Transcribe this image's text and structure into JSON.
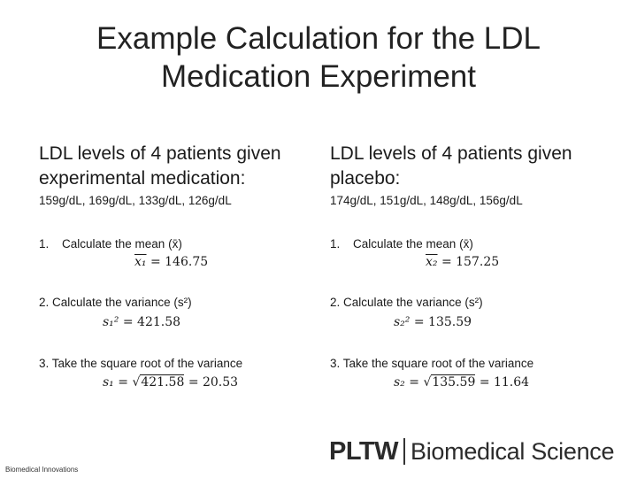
{
  "title": "Example Calculation for the LDL Medication Experiment",
  "left": {
    "heading": "LDL levels of 4 patients given experimental medication:",
    "values": "159g/dL, 169g/dL, 133g/dL, 126g/dL",
    "step1_num": "1.",
    "step1_text": "Calculate the mean (x̄)",
    "mean_label": "x₁",
    "mean_value": "= 146.75",
    "step2_text": "2. Calculate the variance (s²)",
    "var_label": "s₁²",
    "var_value": "= 421.58",
    "step3_text": "3. Take the square root of the variance",
    "sd_label": "s₁ =",
    "sd_sqrt": "√",
    "sd_radicand": "421.58",
    "sd_value": "= 20.53"
  },
  "right": {
    "heading": "LDL levels of 4 patients given placebo:",
    "values": "174g/dL, 151g/dL, 148g/dL, 156g/dL",
    "step1_num": "1.",
    "step1_text": "Calculate the mean (x̄)",
    "mean_label": "x₂",
    "mean_value": "= 157.25",
    "step2_text": "2. Calculate the variance (s²)",
    "var_label": "s₂²",
    "var_value": "= 135.59",
    "step3_text": "3. Take the square root of the variance",
    "sd_label": "s₂ =",
    "sd_sqrt": "√",
    "sd_radicand": "135.59",
    "sd_value": "= 11.64"
  },
  "footer": {
    "note": "Biomedical Innovations",
    "logo_main": "PLTW",
    "logo_sub": "Biomedical Science"
  }
}
